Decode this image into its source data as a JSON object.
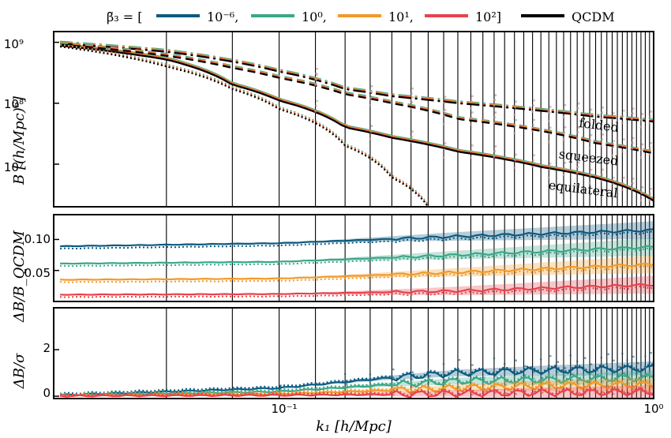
{
  "legend": {
    "prefix": "β̃₃ = [",
    "entries": [
      {
        "label": "10⁻⁶,",
        "color": "#0c5a80"
      },
      {
        "label": "10⁰,",
        "color": "#3aa788"
      },
      {
        "label": "10¹,",
        "color": "#f19a2a"
      },
      {
        "label": "10²]",
        "color": "#e8424c"
      },
      {
        "label": "QCDM",
        "color": "#000000"
      }
    ]
  },
  "chart_data": [
    {
      "type": "line",
      "panel": "top",
      "ylabel": "B   [(h/Mpc)⁶]",
      "yscale": "log",
      "xscale": "log",
      "xlim": [
        0.025,
        1.0
      ],
      "ylim": [
        2000000,
        1500000000
      ],
      "yticks": [
        {
          "value": 1000000000,
          "label": "10⁹"
        },
        {
          "value": 100000000,
          "label": "10⁸"
        },
        {
          "value": 10000000,
          "label": "10⁷"
        }
      ],
      "shape_labels": [
        "folded",
        "squeezed",
        "equilateral"
      ],
      "series": [
        {
          "x": [
            0.026,
            0.05,
            0.075,
            0.1,
            0.15,
            0.2,
            0.3,
            0.5,
            0.7,
            1.0
          ],
          "values": [
            880000000,
            520000000,
            200000000,
            110000000,
            40000000,
            27000000,
            16000000,
            9000000,
            6000000,
            2500000
          ],
          "style": "solid"
        },
        {
          "x": [
            0.026,
            0.05,
            0.075,
            0.1,
            0.15,
            0.2,
            0.3,
            0.5,
            0.7,
            1.0
          ],
          "values": [
            950000000,
            700000000,
            480000000,
            330000000,
            170000000,
            130000000,
            100000000,
            75000000,
            60000000,
            50000000
          ],
          "style": "dashdot"
        },
        {
          "x": [
            0.026,
            0.05,
            0.075,
            0.1,
            0.15,
            0.2,
            0.3,
            0.5,
            0.7,
            1.0
          ],
          "values": [
            920000000,
            600000000,
            380000000,
            260000000,
            140000000,
            100000000,
            55000000,
            35000000,
            22000000,
            15000000
          ],
          "style": "dashed"
        },
        {
          "x": [
            0.026,
            0.05,
            0.075,
            0.1,
            0.15,
            0.2,
            0.25
          ],
          "values": [
            850000000,
            400000000,
            170000000,
            80000000,
            20000000,
            6000000,
            2000000
          ],
          "style": "dotted"
        }
      ]
    },
    {
      "type": "line",
      "panel": "middle",
      "ylabel": "ΔB/B_QCDM",
      "xscale": "log",
      "xlim": [
        0.025,
        1.0
      ],
      "ylim": [
        0.0,
        0.14
      ],
      "yticks": [
        {
          "value": 0.1,
          "label": "0.10"
        },
        {
          "value": 0.05,
          "label": "0.05"
        }
      ],
      "series": [
        {
          "name": "10⁻⁶",
          "x": [
            0.026,
            0.1,
            0.3,
            1.0
          ],
          "values": [
            0.089,
            0.094,
            0.105,
            0.115
          ]
        },
        {
          "name": "10⁰",
          "x": [
            0.026,
            0.1,
            0.3,
            1.0
          ],
          "values": [
            0.061,
            0.064,
            0.075,
            0.088
          ]
        },
        {
          "name": "10¹",
          "x": [
            0.026,
            0.1,
            0.3,
            1.0
          ],
          "values": [
            0.035,
            0.037,
            0.047,
            0.06
          ]
        },
        {
          "name": "10²",
          "x": [
            0.026,
            0.1,
            0.3,
            1.0
          ],
          "values": [
            0.011,
            0.012,
            0.017,
            0.027
          ]
        }
      ]
    },
    {
      "type": "line",
      "panel": "bottom",
      "ylabel": "ΔB/σ",
      "xlabel": "k₁   [h/Mpc]",
      "xscale": "log",
      "xlim": [
        0.025,
        1.0
      ],
      "ylim": [
        -0.1,
        3.8
      ],
      "yticks": [
        {
          "value": 0,
          "label": "0"
        },
        {
          "value": 2,
          "label": "2"
        }
      ],
      "xticks": [
        {
          "value": 0.1,
          "label": "10⁻¹"
        },
        {
          "value": 1.0,
          "label": "10⁰"
        }
      ],
      "series": [
        {
          "name": "10⁻⁶",
          "x": [
            0.026,
            0.1,
            0.2,
            0.3,
            0.5,
            1.0
          ],
          "values": [
            0.05,
            0.35,
            0.8,
            1.0,
            1.1,
            1.2
          ]
        },
        {
          "name": "10⁰",
          "x": [
            0.026,
            0.1,
            0.2,
            0.3,
            0.5,
            1.0
          ],
          "values": [
            0.03,
            0.2,
            0.5,
            0.65,
            0.7,
            0.8
          ]
        },
        {
          "name": "10¹",
          "x": [
            0.026,
            0.1,
            0.2,
            0.3,
            0.5,
            1.0
          ],
          "values": [
            0.02,
            0.1,
            0.25,
            0.35,
            0.45,
            0.5
          ]
        },
        {
          "name": "10²",
          "x": [
            0.026,
            0.1,
            0.2,
            0.3,
            0.5,
            1.0
          ],
          "values": [
            0.01,
            0.04,
            0.08,
            0.12,
            0.15,
            0.18
          ]
        }
      ]
    }
  ]
}
